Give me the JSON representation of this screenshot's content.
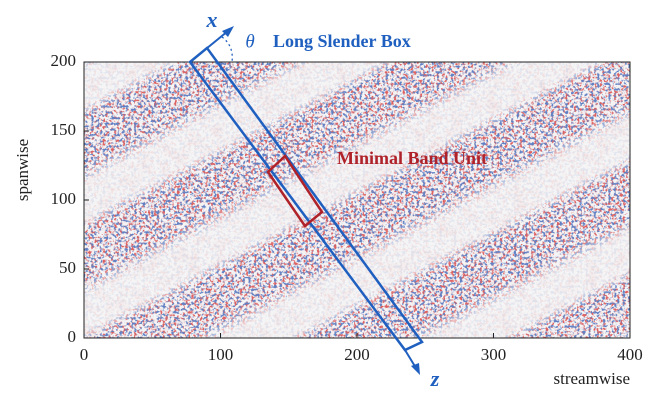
{
  "chart_data": {
    "type": "field",
    "xlabel": "streamwise",
    "ylabel": "spanwise",
    "xlim": [
      0,
      400
    ],
    "xticks": [
      0,
      100,
      200,
      300,
      400
    ],
    "ylim": [
      0,
      200
    ],
    "yticks": [
      0,
      50,
      100,
      150,
      200
    ],
    "annotations": [
      "Long Slender Box",
      "Minimal Band Unit",
      "x",
      "z",
      "θ"
    ]
  }
}
